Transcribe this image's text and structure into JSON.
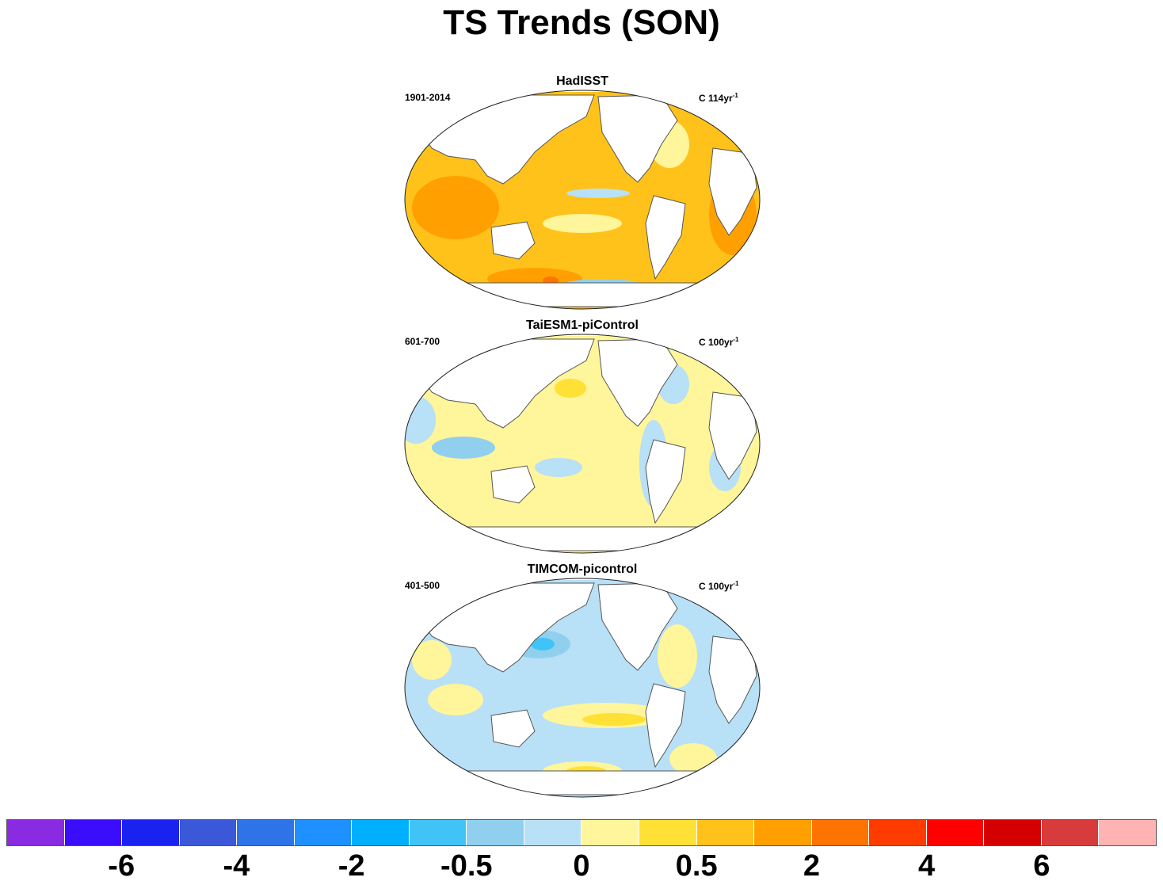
{
  "figure": {
    "title": "TS Trends (SON)"
  },
  "panels": [
    {
      "title": "HadISST",
      "period": "1901-2014",
      "units_prefix": "C 114yr",
      "units_exp": "-1",
      "pattern": "warm"
    },
    {
      "title": "TaiESM1-piControl",
      "period": "601-700",
      "units_prefix": "C 100yr",
      "units_exp": "-1",
      "pattern": "mild"
    },
    {
      "title": "TIMCOM-picontrol",
      "period": "401-500",
      "units_prefix": "C 100yr",
      "units_exp": "-1",
      "pattern": "cool"
    }
  ],
  "colorbar": {
    "colors": [
      "#8a2be2",
      "#3a0dfc",
      "#1a22f0",
      "#3b58d8",
      "#2f73e8",
      "#1e90ff",
      "#00b0ff",
      "#40c4f8",
      "#90d0ee",
      "#b8e0f6",
      "#fff59a",
      "#ffe135",
      "#ffc21a",
      "#ffa000",
      "#ff7300",
      "#ff3c00",
      "#ff0000",
      "#d40000",
      "#d73b3b",
      "#ffb3b3"
    ],
    "labels": [
      "-6",
      "-4",
      "-2",
      "-0.5",
      "0",
      "0.5",
      "2",
      "4",
      "6"
    ],
    "label_after_segment": [
      1,
      3,
      5,
      7,
      9,
      11,
      13,
      15,
      17
    ]
  }
}
